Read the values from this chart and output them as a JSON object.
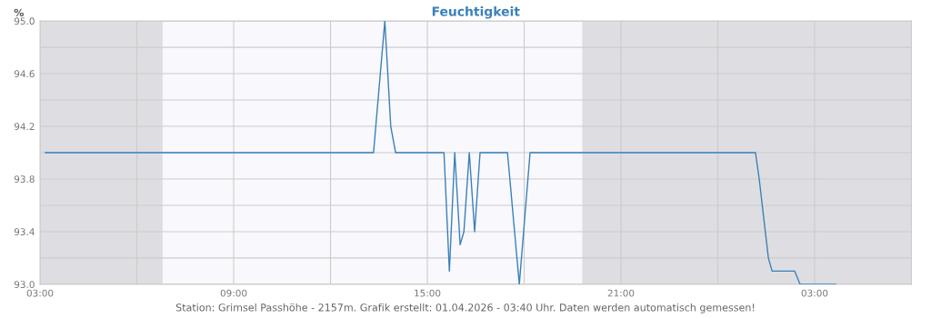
{
  "chart_data": {
    "type": "line",
    "title": "Feuchtigkeit",
    "ylabel": "%",
    "annotations": [
      "Station: Grimsel Passhöhe - 2157m. Grafik erstellt: 01.04.2026 - 03:40 Uhr. Daten werden automatisch gemessen!"
    ],
    "x": [
      "2026-03-31T03:10",
      "2026-03-31T13:20",
      "2026-03-31T13:41",
      "2026-03-31T13:52",
      "2026-03-31T14:01",
      "2026-03-31T15:31",
      "2026-03-31T15:41",
      "2026-03-31T15:51",
      "2026-03-31T16:01",
      "2026-03-31T16:08",
      "2026-03-31T16:18",
      "2026-03-31T16:28",
      "2026-03-31T16:38",
      "2026-03-31T17:29",
      "2026-03-31T17:51",
      "2026-03-31T18:11",
      "2026-04-01T01:10",
      "2026-04-01T01:17",
      "2026-04-01T01:34",
      "2026-04-01T01:41",
      "2026-04-01T02:23",
      "2026-04-01T02:33",
      "2026-04-01T03:39"
    ],
    "series": [
      {
        "color": "#3a80b9",
        "values": [
          94.0,
          94.0,
          95.0,
          94.2,
          94.0,
          94.0,
          93.1,
          94.0,
          93.3,
          93.4,
          94.0,
          93.4,
          94.0,
          94.0,
          93.0,
          94.0,
          94.0,
          93.8,
          93.2,
          93.1,
          93.1,
          93.0,
          93.0
        ]
      }
    ],
    "xlim": [
      "2026-03-31T03:00",
      "2026-04-01T06:00"
    ],
    "ylim": [
      93.0,
      95.0
    ],
    "xticks": [
      {
        "value": "2026-03-31T03:00",
        "label": "03:00"
      },
      {
        "value": "2026-03-31T06:00",
        "label": null
      },
      {
        "value": "2026-03-31T09:00",
        "label": "09:00"
      },
      {
        "value": "2026-03-31T12:00",
        "label": null
      },
      {
        "value": "2026-03-31T15:00",
        "label": "15:00"
      },
      {
        "value": "2026-03-31T18:00",
        "label": null
      },
      {
        "value": "2026-03-31T21:00",
        "label": "21:00"
      },
      {
        "value": "2026-04-01T00:00",
        "label": null
      },
      {
        "value": "2026-04-01T03:00",
        "label": "03:00"
      }
    ],
    "yticks": [
      {
        "value": 93.0,
        "label": "93.0"
      },
      {
        "value": 93.2,
        "label": null
      },
      {
        "value": 93.4,
        "label": "93.4"
      },
      {
        "value": 93.6,
        "label": null
      },
      {
        "value": 93.8,
        "label": "93.8"
      },
      {
        "value": 94.0,
        "label": null
      },
      {
        "value": 94.2,
        "label": "94.2"
      },
      {
        "value": 94.4,
        "label": null
      },
      {
        "value": 94.6,
        "label": "94.6"
      },
      {
        "value": 94.8,
        "label": null
      },
      {
        "value": 95.0,
        "label": "95.0"
      }
    ],
    "bands": [
      {
        "axis": "x",
        "from": "2026-03-31T03:00",
        "to": "2026-03-31T06:48",
        "color": "#dedee2"
      },
      {
        "axis": "x",
        "from": "2026-03-31T06:48",
        "to": "2026-03-31T19:48",
        "color": "#f9f8fd"
      },
      {
        "axis": "x",
        "from": "2026-03-31T19:48",
        "to": "2026-04-01T06:00",
        "color": "#dedee2"
      }
    ],
    "grid": true,
    "marker": "none",
    "line_style": "solid"
  }
}
